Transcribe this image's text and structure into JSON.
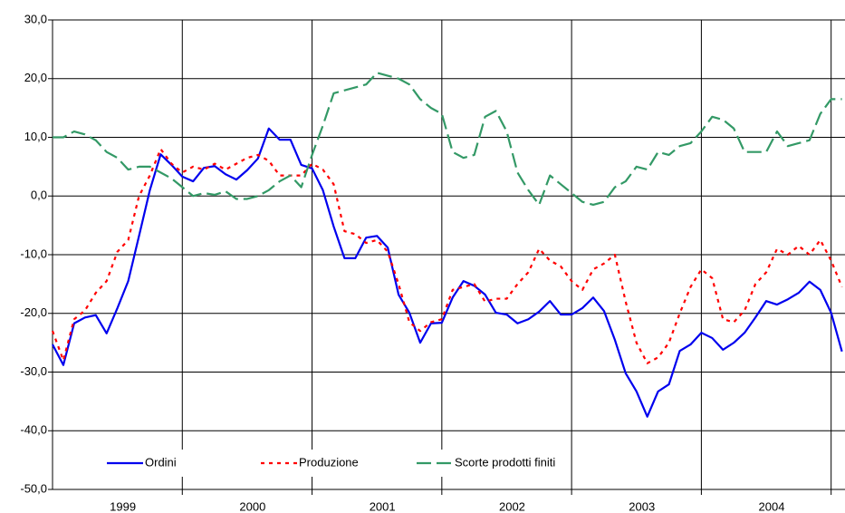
{
  "chart_data": {
    "type": "line",
    "categories": [
      null,
      null,
      null,
      null,
      null,
      null,
      "1999",
      null,
      null,
      null,
      null,
      null,
      null,
      null,
      null,
      null,
      null,
      null,
      "2000",
      null,
      null,
      null,
      null,
      null,
      null,
      null,
      null,
      null,
      null,
      null,
      "2001",
      null,
      null,
      null,
      null,
      null,
      null,
      null,
      null,
      null,
      null,
      null,
      "2002",
      null,
      null,
      null,
      null,
      null,
      null,
      null,
      null,
      null,
      null,
      null,
      "2003",
      null,
      null,
      null,
      null,
      null,
      null,
      null,
      null,
      null,
      null,
      null,
      "2004",
      null,
      null,
      null,
      null,
      null,
      null,
      null
    ],
    "series": [
      {
        "name": "Ordini",
        "color": "#0000ee",
        "line_style": "solid",
        "values": [
          -25.3,
          -28.8,
          -21.7,
          -20.7,
          -20.3,
          -23.4,
          -19.1,
          -14.5,
          -6.8,
          1.0,
          7.1,
          5.3,
          3.3,
          2.5,
          4.8,
          5.1,
          3.7,
          2.8,
          4.4,
          6.4,
          11.5,
          9.6,
          9.6,
          5.3,
          4.7,
          1.0,
          -5.2,
          -10.6,
          -10.6,
          -7.1,
          -6.8,
          -8.8,
          -16.8,
          -19.9,
          -25.0,
          -21.7,
          -21.6,
          -17.3,
          -14.5,
          -15.3,
          -16.8,
          -19.9,
          -20.2,
          -21.7,
          -21.0,
          -19.7,
          -17.9,
          -20.2,
          -20.2,
          -19.1,
          -17.3,
          -19.6,
          -24.5,
          -30.2,
          -33.3,
          -37.6,
          -33.3,
          -32.1,
          -26.4,
          -25.3,
          -23.3,
          -24.2,
          -26.2,
          -25.0,
          -23.3,
          -20.7,
          -17.9,
          -18.5,
          -17.6,
          -16.5,
          -14.6,
          -16.0,
          -19.9,
          -26.5
        ]
      },
      {
        "name": "Produzione",
        "color": "#ff0000",
        "line_style": "dotted",
        "values": [
          -23,
          -28,
          -21,
          -19.5,
          -16.5,
          -14.5,
          -9.5,
          -7.5,
          0,
          3.5,
          8,
          5.5,
          4,
          5,
          4.5,
          5.5,
          4.5,
          5.5,
          6.5,
          7,
          6,
          3.5,
          3.5,
          3.5,
          5.5,
          4.5,
          2,
          -6,
          -6.5,
          -8,
          -7.5,
          -9.5,
          -15,
          -21.5,
          -23,
          -21.5,
          -21,
          -16,
          -15.5,
          -15,
          -18,
          -17.5,
          -17.5,
          -15,
          -13,
          -9,
          -11,
          -12,
          -14.5,
          -16,
          -12.5,
          -11.5,
          -10,
          -18,
          -25,
          -28.5,
          -27.5,
          -25,
          -20,
          -15.5,
          -12.5,
          -14,
          -21,
          -21.5,
          -19.5,
          -15,
          -13,
          -9,
          -10,
          -8.5,
          -10,
          -7.5,
          -11,
          -15.5
        ]
      },
      {
        "name": "Scorte prodotti finiti",
        "color": "#339966",
        "line_style": "dashed",
        "values": [
          10,
          10,
          11,
          10.5,
          9.5,
          7.5,
          6.5,
          4.5,
          5,
          5,
          4,
          3,
          1.5,
          0,
          0.5,
          0.2,
          0.8,
          -0.5,
          -0.5,
          0,
          1,
          2.5,
          3.5,
          1.5,
          7,
          12,
          17.5,
          18,
          18.5,
          19,
          21,
          20.5,
          20,
          19,
          16.5,
          15,
          14,
          7.5,
          6.5,
          7,
          13.5,
          14.5,
          11,
          4,
          1,
          -1.5,
          3.5,
          2,
          0.5,
          -1,
          -1.5,
          -1,
          1.5,
          2.5,
          5,
          4.5,
          7.5,
          7,
          8.5,
          9,
          11,
          13.5,
          13,
          11.5,
          7.5,
          7.5,
          7.5,
          11,
          8.5,
          9,
          9.5,
          14,
          16.5,
          16.5
        ]
      }
    ],
    "ylim": [
      -50,
      30
    ],
    "yticks": [
      {
        "value": -50,
        "label": "-50,0"
      },
      {
        "value": -40,
        "label": "-40,0"
      },
      {
        "value": -30,
        "label": "-30,0"
      },
      {
        "value": -20,
        "label": "-20,0"
      },
      {
        "value": -10,
        "label": "-10,0"
      },
      {
        "value": 0,
        "label": "0,0"
      },
      {
        "value": 10,
        "label": "10,0"
      },
      {
        "value": 20,
        "label": "20,0"
      },
      {
        "value": 30,
        "label": "30,0"
      }
    ],
    "grid": true,
    "legend": "lower left"
  }
}
